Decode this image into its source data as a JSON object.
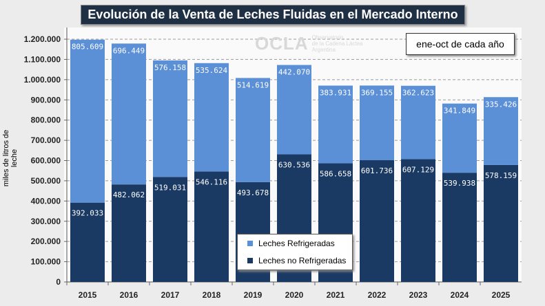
{
  "title": "Evolución de la Venta de Leches Fluidas en el Mercado Interno",
  "period_note": "ene-oct de cada año",
  "logo": {
    "name": "OCLA",
    "line1": "Observatorio",
    "line2": "de la Cadena Láctea",
    "line3": "Argentina"
  },
  "chart_data": {
    "type": "bar",
    "stacked": true,
    "title": "Evolución de la Venta de Leches Fluidas en el Mercado Interno",
    "ylabel": "miles de litros de leche",
    "xlabel": "",
    "ylim": [
      0,
      1200000
    ],
    "yticks": [
      "0",
      "100.000",
      "200.000",
      "300.000",
      "400.000",
      "500.000",
      "600.000",
      "700.000",
      "800.000",
      "900.000",
      "1.000.000",
      "1.100.000",
      "1.200.000"
    ],
    "grid": true,
    "legend": "bottom-center",
    "categories": [
      "2015",
      "2016",
      "2017",
      "2018",
      "2019",
      "2020",
      "2021",
      "2022",
      "2023",
      "2024",
      "2025"
    ],
    "series": [
      {
        "name": "Leches no Refrigeradas",
        "color": "#1b3a63",
        "values": [
          392033,
          482062,
          519031,
          546116,
          493678,
          630536,
          586658,
          601736,
          607129,
          539938,
          578159
        ],
        "labels": [
          "392.033",
          "482.062",
          "519.031",
          "546.116",
          "493.678",
          "630.536",
          "586.658",
          "601.736",
          "607.129",
          "539.938",
          "578.159"
        ]
      },
      {
        "name": "Leches Refrigeradas",
        "color": "#5b8fd6",
        "values": [
          805609,
          696449,
          576158,
          535624,
          514619,
          442070,
          383931,
          369155,
          362623,
          341849,
          335426
        ],
        "labels": [
          "805.609",
          "696.449",
          "576.158",
          "535.624",
          "514.619",
          "442.070",
          "383.931",
          "369.155",
          "362.623",
          "341.849",
          "335.426"
        ]
      }
    ]
  }
}
